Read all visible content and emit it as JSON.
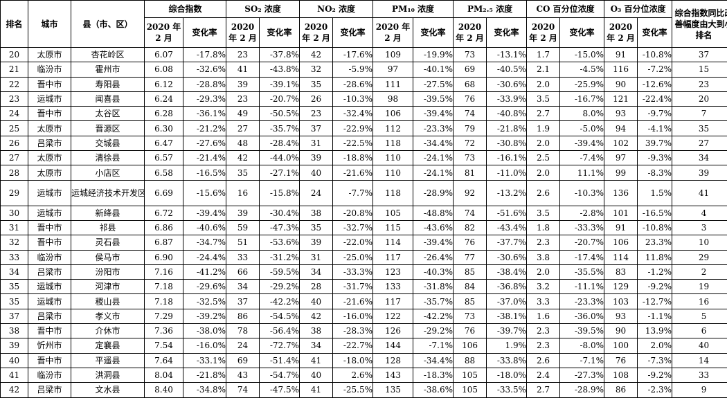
{
  "headers": {
    "rank": "排名",
    "city": "城市",
    "county": "县（市、区）",
    "composite": "综合指数",
    "so2": "SO₂ 浓度",
    "no2": "NO₂ 浓度",
    "pm10": "PM₁₀ 浓度",
    "pm25": "PM₂.₅ 浓度",
    "co": "CO 百分位浓度",
    "o3": "O₃ 百分位浓度",
    "improve_rank": "综合指数同比改善幅度由大到小排名",
    "year_feb": "2020 年 2 月",
    "change_rate": "变化率"
  },
  "rows": [
    {
      "rank": "20",
      "city": "太原市",
      "county": "杏花岭区",
      "ci": "6.07",
      "ci_chg": "-17.8%",
      "so2": "23",
      "so2_chg": "-37.8%",
      "no2": "42",
      "no2_chg": "-17.6%",
      "pm10": "109",
      "pm10_chg": "-19.9%",
      "pm25": "73",
      "pm25_chg": "-13.1%",
      "co": "1.7",
      "co_chg": "-15.0%",
      "o3": "91",
      "o3_chg": "-10.8%",
      "imp": "37"
    },
    {
      "rank": "21",
      "city": "临汾市",
      "county": "霍州市",
      "ci": "6.08",
      "ci_chg": "-32.6%",
      "so2": "41",
      "so2_chg": "-43.8%",
      "no2": "32",
      "no2_chg": "-5.9%",
      "pm10": "97",
      "pm10_chg": "-40.1%",
      "pm25": "69",
      "pm25_chg": "-40.5%",
      "co": "2.1",
      "co_chg": "-4.5%",
      "o3": "116",
      "o3_chg": "-7.2%",
      "imp": "15"
    },
    {
      "rank": "22",
      "city": "晋中市",
      "county": "寿阳县",
      "ci": "6.12",
      "ci_chg": "-28.8%",
      "so2": "39",
      "so2_chg": "-39.1%",
      "no2": "35",
      "no2_chg": "-28.6%",
      "pm10": "111",
      "pm10_chg": "-27.5%",
      "pm25": "68",
      "pm25_chg": "-30.6%",
      "co": "2.0",
      "co_chg": "-25.9%",
      "o3": "90",
      "o3_chg": "-12.6%",
      "imp": "23"
    },
    {
      "rank": "23",
      "city": "运城市",
      "county": "闻喜县",
      "ci": "6.24",
      "ci_chg": "-29.3%",
      "so2": "23",
      "so2_chg": "-20.7%",
      "no2": "26",
      "no2_chg": "-10.3%",
      "pm10": "98",
      "pm10_chg": "-39.5%",
      "pm25": "76",
      "pm25_chg": "-33.9%",
      "co": "3.5",
      "co_chg": "-16.7%",
      "o3": "121",
      "o3_chg": "-22.4%",
      "imp": "20"
    },
    {
      "rank": "24",
      "city": "晋中市",
      "county": "太谷区",
      "ci": "6.28",
      "ci_chg": "-36.1%",
      "so2": "49",
      "so2_chg": "-50.5%",
      "no2": "23",
      "no2_chg": "-32.4%",
      "pm10": "106",
      "pm10_chg": "-39.4%",
      "pm25": "74",
      "pm25_chg": "-40.8%",
      "co": "2.7",
      "co_chg": "8.0%",
      "o3": "93",
      "o3_chg": "-9.7%",
      "imp": "7"
    },
    {
      "rank": "25",
      "city": "太原市",
      "county": "晋源区",
      "ci": "6.30",
      "ci_chg": "-21.2%",
      "so2": "27",
      "so2_chg": "-35.7%",
      "no2": "37",
      "no2_chg": "-22.9%",
      "pm10": "112",
      "pm10_chg": "-23.3%",
      "pm25": "79",
      "pm25_chg": "-21.8%",
      "co": "1.9",
      "co_chg": "-5.0%",
      "o3": "94",
      "o3_chg": "-4.1%",
      "imp": "35"
    },
    {
      "rank": "26",
      "city": "吕梁市",
      "county": "交城县",
      "ci": "6.47",
      "ci_chg": "-27.6%",
      "so2": "48",
      "so2_chg": "-28.4%",
      "no2": "31",
      "no2_chg": "-22.5%",
      "pm10": "118",
      "pm10_chg": "-34.4%",
      "pm25": "72",
      "pm25_chg": "-30.8%",
      "co": "2.0",
      "co_chg": "-39.4%",
      "o3": "102",
      "o3_chg": "39.7%",
      "imp": "27"
    },
    {
      "rank": "27",
      "city": "太原市",
      "county": "清徐县",
      "ci": "6.57",
      "ci_chg": "-21.4%",
      "so2": "42",
      "so2_chg": "-44.0%",
      "no2": "39",
      "no2_chg": "-18.8%",
      "pm10": "110",
      "pm10_chg": "-24.1%",
      "pm25": "73",
      "pm25_chg": "-16.1%",
      "co": "2.5",
      "co_chg": "-7.4%",
      "o3": "97",
      "o3_chg": "-9.3%",
      "imp": "34"
    },
    {
      "rank": "28",
      "city": "太原市",
      "county": "小店区",
      "ci": "6.58",
      "ci_chg": "-16.5%",
      "so2": "35",
      "so2_chg": "-27.1%",
      "no2": "40",
      "no2_chg": "-21.6%",
      "pm10": "110",
      "pm10_chg": "-24.1%",
      "pm25": "81",
      "pm25_chg": "-11.0%",
      "co": "2.0",
      "co_chg": "11.1%",
      "o3": "99",
      "o3_chg": "-8.3%",
      "imp": "39"
    },
    {
      "rank": "29",
      "city": "运城市",
      "county": "运城经济技术开发区",
      "ci": "6.69",
      "ci_chg": "-15.6%",
      "so2": "16",
      "so2_chg": "-15.8%",
      "no2": "24",
      "no2_chg": "-7.7%",
      "pm10": "118",
      "pm10_chg": "-28.9%",
      "pm25": "92",
      "pm25_chg": "-13.2%",
      "co": "2.6",
      "co_chg": "-10.3%",
      "o3": "136",
      "o3_chg": "1.5%",
      "imp": "41",
      "tall": true
    },
    {
      "rank": "30",
      "city": "运城市",
      "county": "新绛县",
      "ci": "6.72",
      "ci_chg": "-39.4%",
      "so2": "39",
      "so2_chg": "-30.4%",
      "no2": "38",
      "no2_chg": "-20.8%",
      "pm10": "105",
      "pm10_chg": "-48.8%",
      "pm25": "74",
      "pm25_chg": "-51.6%",
      "co": "3.5",
      "co_chg": "-2.8%",
      "o3": "101",
      "o3_chg": "-16.5%",
      "imp": "4"
    },
    {
      "rank": "31",
      "city": "晋中市",
      "county": "祁县",
      "ci": "6.86",
      "ci_chg": "-40.6%",
      "so2": "59",
      "so2_chg": "-47.3%",
      "no2": "35",
      "no2_chg": "-32.7%",
      "pm10": "115",
      "pm10_chg": "-43.6%",
      "pm25": "82",
      "pm25_chg": "-43.4%",
      "co": "1.8",
      "co_chg": "-33.3%",
      "o3": "91",
      "o3_chg": "-10.8%",
      "imp": "3"
    },
    {
      "rank": "32",
      "city": "晋中市",
      "county": "灵石县",
      "ci": "6.87",
      "ci_chg": "-34.7%",
      "so2": "51",
      "so2_chg": "-53.6%",
      "no2": "39",
      "no2_chg": "-22.0%",
      "pm10": "114",
      "pm10_chg": "-39.4%",
      "pm25": "76",
      "pm25_chg": "-37.7%",
      "co": "2.3",
      "co_chg": "-20.7%",
      "o3": "106",
      "o3_chg": "23.3%",
      "imp": "10"
    },
    {
      "rank": "33",
      "city": "临汾市",
      "county": "侯马市",
      "ci": "6.90",
      "ci_chg": "-24.4%",
      "so2": "33",
      "so2_chg": "-31.2%",
      "no2": "31",
      "no2_chg": "-25.0%",
      "pm10": "117",
      "pm10_chg": "-26.4%",
      "pm25": "77",
      "pm25_chg": "-30.6%",
      "co": "3.8",
      "co_chg": "-17.4%",
      "o3": "114",
      "o3_chg": "11.8%",
      "imp": "29"
    },
    {
      "rank": "34",
      "city": "吕梁市",
      "county": "汾阳市",
      "ci": "7.16",
      "ci_chg": "-41.2%",
      "so2": "66",
      "so2_chg": "-59.5%",
      "no2": "34",
      "no2_chg": "-33.3%",
      "pm10": "123",
      "pm10_chg": "-40.3%",
      "pm25": "85",
      "pm25_chg": "-38.4%",
      "co": "2.0",
      "co_chg": "-35.5%",
      "o3": "83",
      "o3_chg": "-1.2%",
      "imp": "2"
    },
    {
      "rank": "35",
      "city": "运城市",
      "county": "河津市",
      "ci": "7.18",
      "ci_chg": "-29.6%",
      "so2": "34",
      "so2_chg": "-29.2%",
      "no2": "28",
      "no2_chg": "-31.7%",
      "pm10": "133",
      "pm10_chg": "-31.8%",
      "pm25": "84",
      "pm25_chg": "-36.8%",
      "co": "3.2",
      "co_chg": "-11.1%",
      "o3": "129",
      "o3_chg": "-9.2%",
      "imp": "19"
    },
    {
      "rank": "35",
      "city": "运城市",
      "county": "稷山县",
      "ci": "7.18",
      "ci_chg": "-32.5%",
      "so2": "37",
      "so2_chg": "-42.2%",
      "no2": "40",
      "no2_chg": "-21.6%",
      "pm10": "117",
      "pm10_chg": "-35.7%",
      "pm25": "85",
      "pm25_chg": "-37.0%",
      "co": "3.3",
      "co_chg": "-23.3%",
      "o3": "103",
      "o3_chg": "-12.7%",
      "imp": "16"
    },
    {
      "rank": "37",
      "city": "吕梁市",
      "county": "孝义市",
      "ci": "7.29",
      "ci_chg": "-39.2%",
      "so2": "86",
      "so2_chg": "-54.5%",
      "no2": "42",
      "no2_chg": "-16.0%",
      "pm10": "122",
      "pm10_chg": "-42.2%",
      "pm25": "73",
      "pm25_chg": "-38.1%",
      "co": "1.6",
      "co_chg": "-36.0%",
      "o3": "93",
      "o3_chg": "-1.1%",
      "imp": "5"
    },
    {
      "rank": "38",
      "city": "晋中市",
      "county": "介休市",
      "ci": "7.36",
      "ci_chg": "-38.0%",
      "so2": "78",
      "so2_chg": "-56.4%",
      "no2": "38",
      "no2_chg": "-28.3%",
      "pm10": "126",
      "pm10_chg": "-29.2%",
      "pm25": "76",
      "pm25_chg": "-39.7%",
      "co": "2.3",
      "co_chg": "-39.5%",
      "o3": "90",
      "o3_chg": "13.9%",
      "imp": "6"
    },
    {
      "rank": "39",
      "city": "忻州市",
      "county": "定襄县",
      "ci": "7.54",
      "ci_chg": "-16.0%",
      "so2": "24",
      "so2_chg": "-72.7%",
      "no2": "34",
      "no2_chg": "-22.7%",
      "pm10": "144",
      "pm10_chg": "-7.1%",
      "pm25": "106",
      "pm25_chg": "1.9%",
      "co": "2.3",
      "co_chg": "-8.0%",
      "o3": "100",
      "o3_chg": "2.0%",
      "imp": "40"
    },
    {
      "rank": "40",
      "city": "晋中市",
      "county": "平遥县",
      "ci": "7.64",
      "ci_chg": "-33.1%",
      "so2": "69",
      "so2_chg": "-51.4%",
      "no2": "41",
      "no2_chg": "-18.0%",
      "pm10": "128",
      "pm10_chg": "-34.4%",
      "pm25": "88",
      "pm25_chg": "-33.8%",
      "co": "2.6",
      "co_chg": "-7.1%",
      "o3": "76",
      "o3_chg": "-7.3%",
      "imp": "14"
    },
    {
      "rank": "41",
      "city": "临汾市",
      "county": "洪洞县",
      "ci": "8.04",
      "ci_chg": "-21.8%",
      "so2": "43",
      "so2_chg": "-54.7%",
      "no2": "40",
      "no2_chg": "2.6%",
      "pm10": "143",
      "pm10_chg": "-18.3%",
      "pm25": "105",
      "pm25_chg": "-18.0%",
      "co": "2.4",
      "co_chg": "-27.3%",
      "o3": "108",
      "o3_chg": "-9.2%",
      "imp": "33"
    },
    {
      "rank": "42",
      "city": "吕梁市",
      "county": "文水县",
      "ci": "8.40",
      "ci_chg": "-34.8%",
      "so2": "74",
      "so2_chg": "-47.5%",
      "no2": "41",
      "no2_chg": "-25.5%",
      "pm10": "135",
      "pm10_chg": "-38.6%",
      "pm25": "105",
      "pm25_chg": "-33.5%",
      "co": "2.7",
      "co_chg": "-28.9%",
      "o3": "86",
      "o3_chg": "-2.3%",
      "imp": "9"
    }
  ]
}
